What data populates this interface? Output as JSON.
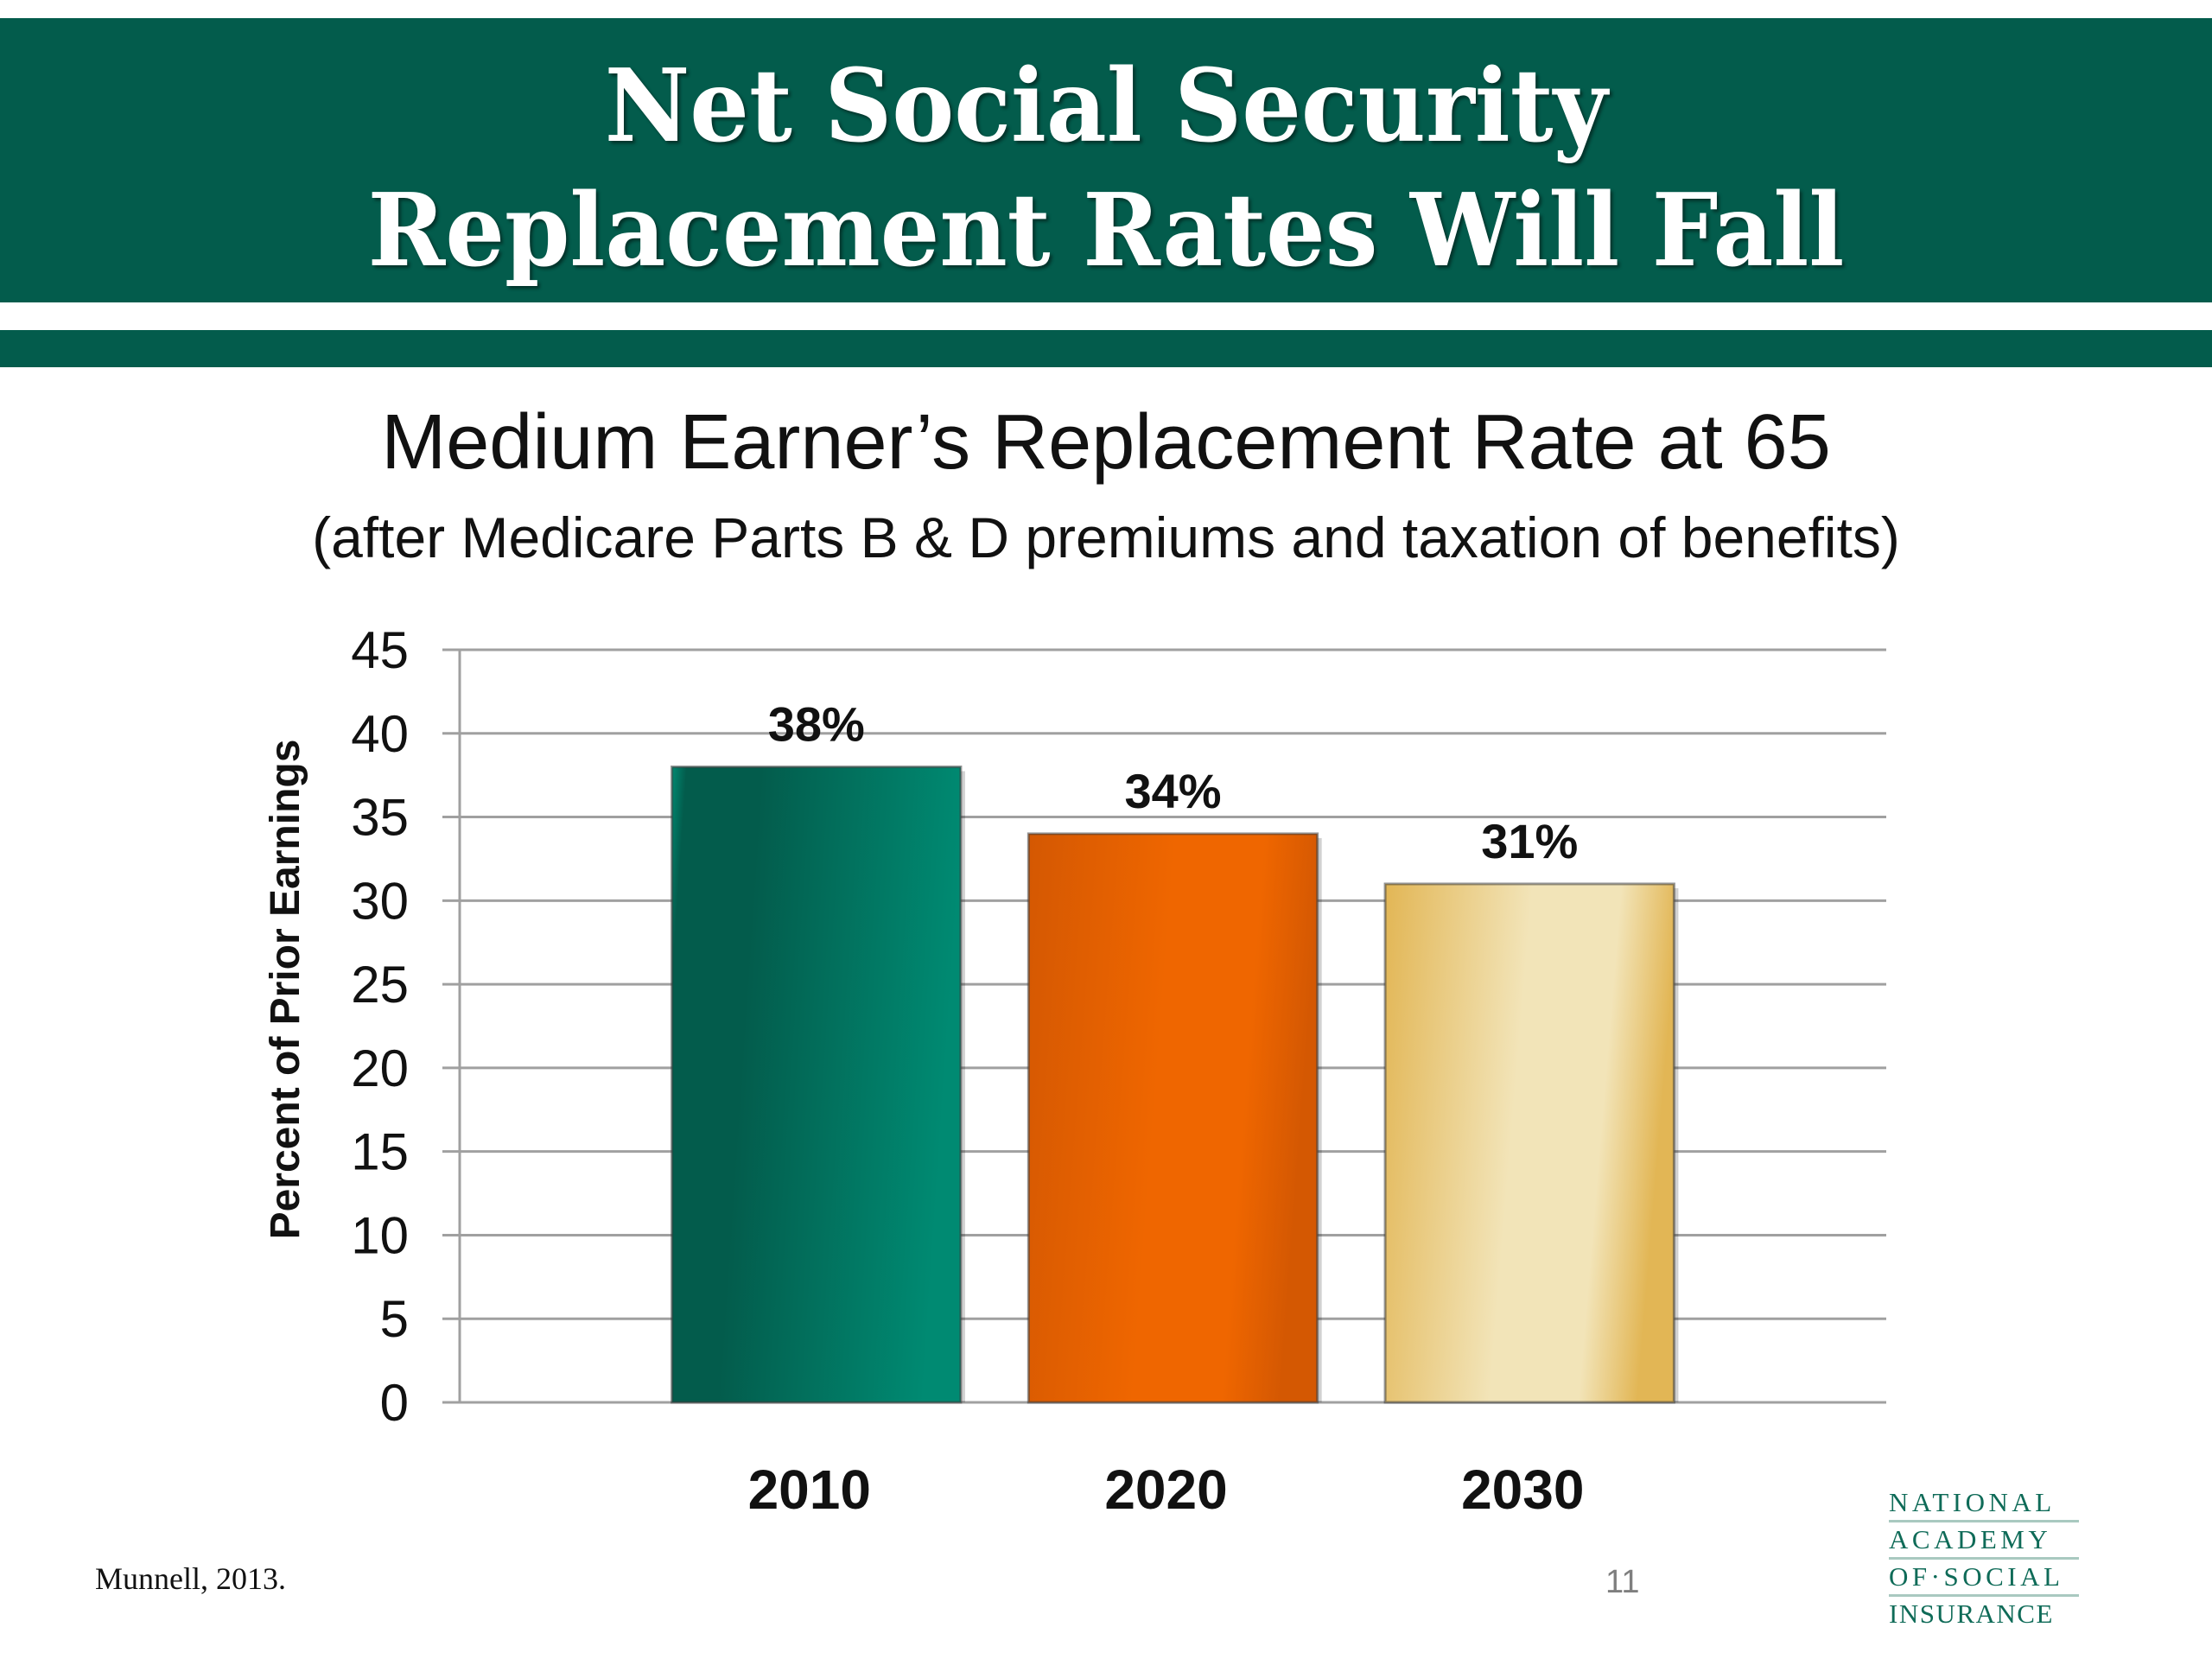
{
  "header": {
    "title_line1": "Net Social Security",
    "title_line2": "Replacement Rates Will Fall",
    "band_color": "#035c4c"
  },
  "subtitle": {
    "line1": "Medium Earner’s Replacement Rate at 65",
    "line2": "(after Medicare Parts B & D premiums and taxation of benefits)"
  },
  "chart_data": {
    "type": "bar",
    "title": "Medium Earner’s Replacement Rate at 65",
    "subtitle": "(after Medicare Parts B & D premiums and taxation of benefits)",
    "categories": [
      "2010",
      "2020",
      "2030"
    ],
    "values": [
      38,
      34,
      31
    ],
    "data_labels": [
      "38%",
      "34%",
      "31%"
    ],
    "bar_colors": [
      {
        "dark": "#035c4c",
        "light": "#008a72"
      },
      {
        "dark": "#d45802",
        "light": "#ef6600"
      },
      {
        "dark": "#e2b655",
        "light": "#f2e4b8"
      }
    ],
    "xlabel": "",
    "ylabel": "Percent of Prior Earnings",
    "ylim": [
      0,
      45
    ],
    "yticks": [
      0,
      5,
      10,
      15,
      20,
      25,
      30,
      35,
      40,
      45
    ],
    "grid": true,
    "legend": "none"
  },
  "footer": {
    "source": "Munnell, 2013.",
    "page_number": "11"
  },
  "logo": {
    "lines": [
      "NATIONAL",
      "ACADEMY",
      "OF·SOCIAL",
      "INSURANCE"
    ]
  }
}
